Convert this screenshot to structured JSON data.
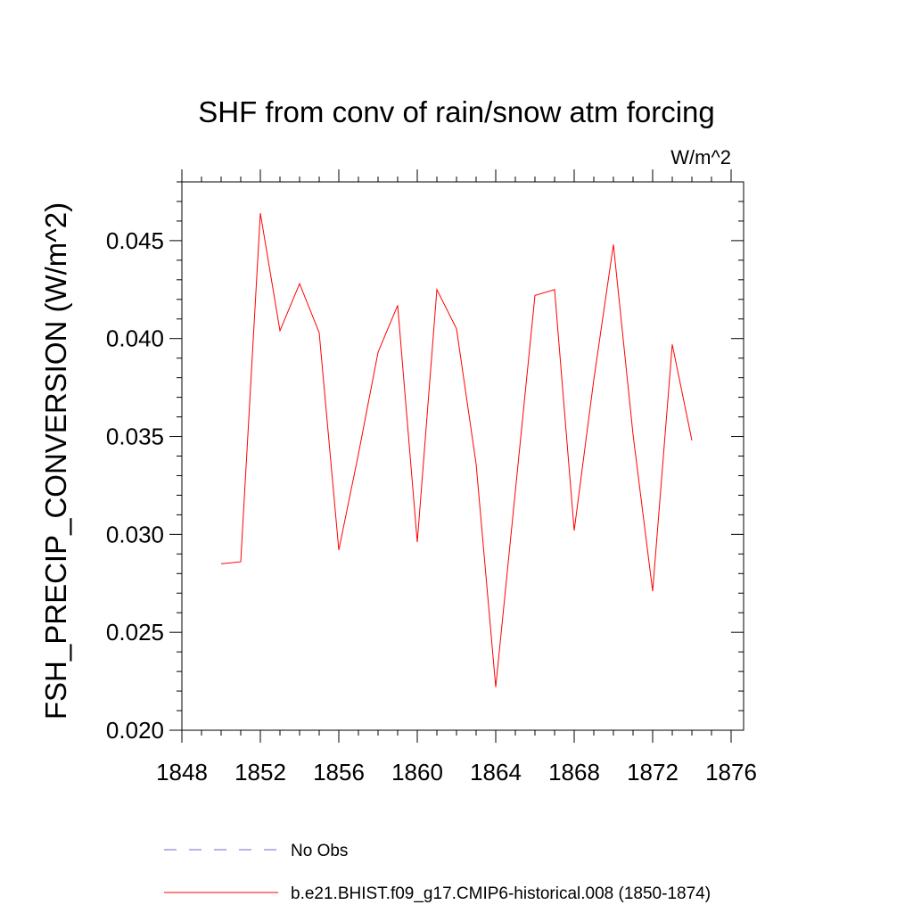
{
  "chart_data": {
    "type": "line",
    "title": "SHF from conv of rain/snow atm forcing",
    "units_label": "W/m^2",
    "xlabel": "",
    "ylabel": "FSH_PRECIP_CONVERSION  (W/m^2)",
    "xlim": [
      1848,
      1876
    ],
    "ylim": [
      0.02,
      0.048
    ],
    "x_ticks": [
      1848,
      1852,
      1856,
      1860,
      1864,
      1868,
      1872,
      1876
    ],
    "y_ticks": [
      0.02,
      0.025,
      0.03,
      0.035,
      0.04,
      0.045
    ],
    "x_tick_labels": [
      "1848",
      "1852",
      "1856",
      "1860",
      "1864",
      "1868",
      "1872",
      "1876"
    ],
    "y_tick_labels": [
      "0.020",
      "0.025",
      "0.030",
      "0.035",
      "0.040",
      "0.045"
    ],
    "series": [
      {
        "name": "b.e21.BHIST.f09_g17.CMIP6-historical.008 (1850-1874)",
        "color": "#ff0000",
        "style": "solid",
        "x": [
          1850,
          1851,
          1852,
          1853,
          1854,
          1855,
          1856,
          1857,
          1858,
          1859,
          1860,
          1861,
          1862,
          1863,
          1864,
          1865,
          1866,
          1867,
          1868,
          1869,
          1870,
          1871,
          1872,
          1873,
          1874
        ],
        "values": [
          0.0285,
          0.0286,
          0.0464,
          0.0404,
          0.0428,
          0.0403,
          0.0292,
          0.0341,
          0.0393,
          0.0417,
          0.0296,
          0.0425,
          0.0405,
          0.0336,
          0.0222,
          0.0322,
          0.0422,
          0.0425,
          0.0302,
          0.0379,
          0.0448,
          0.0351,
          0.0271,
          0.0397,
          0.0348
        ]
      }
    ],
    "legend": [
      {
        "label": "No Obs",
        "color": "#6a6ad0",
        "style": "dashed"
      },
      {
        "label": "b.e21.BHIST.f09_g17.CMIP6-historical.008 (1850-1874)",
        "color": "#ff0000",
        "style": "solid"
      }
    ],
    "grid": false,
    "legend_position": "bottom"
  }
}
